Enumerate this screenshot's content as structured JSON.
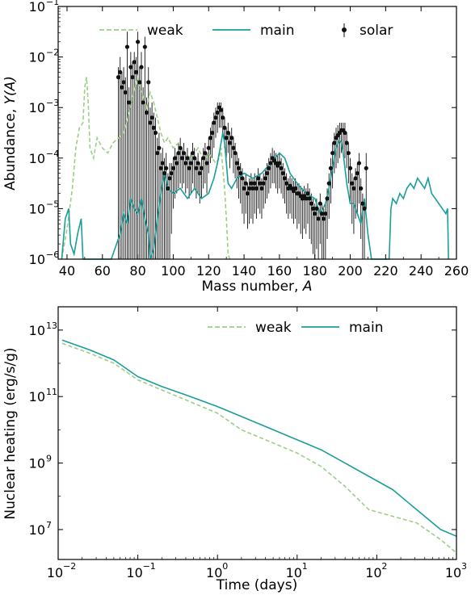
{
  "colors": {
    "weak": "#9ccf86",
    "main": "#1a9e9a",
    "solar": "#111111",
    "axis": "#000000"
  },
  "chart_data": [
    {
      "type": "line",
      "xlabel": "Mass number, ",
      "xlabel_var": "A",
      "ylabel": "Abundance, ",
      "ylabel_var": "Y(A)",
      "xlim": [
        35,
        260
      ],
      "ylim": [
        1e-06,
        0.1
      ],
      "yscale": "log",
      "grid": false,
      "legend_position": "top",
      "xticks": [
        40,
        60,
        80,
        100,
        120,
        140,
        160,
        180,
        200,
        220,
        240,
        260
      ],
      "xtick_labels": [
        "40",
        "60",
        "80",
        "100",
        "120",
        "140",
        "160",
        "180",
        "200",
        "220",
        "240",
        "260"
      ],
      "yticks": [
        -6,
        -5,
        -4,
        -3,
        -2,
        -1
      ],
      "ytick_labels": [
        "10",
        "10",
        "10",
        "10",
        "10",
        "10"
      ],
      "ytick_exps": [
        "−6",
        "−5",
        "−4",
        "−3",
        "−2",
        "−1"
      ],
      "series": [
        {
          "name": "weak",
          "style": "dashed",
          "x": [
            37,
            40,
            43,
            45,
            47,
            49,
            50,
            51,
            52,
            53,
            55,
            57,
            60,
            63,
            66,
            69,
            72,
            75,
            77,
            79,
            80,
            81,
            83,
            85,
            87,
            89,
            91,
            93,
            95,
            97,
            100,
            103,
            106,
            110,
            114,
            118,
            120,
            122,
            124,
            126,
            127,
            128,
            129,
            130,
            131,
            132
          ],
          "y": [
            -6.0,
            -5.4,
            -4.6,
            -3.8,
            -3.4,
            -3.3,
            -2.6,
            -2.4,
            -2.9,
            -3.8,
            -4.0,
            -3.6,
            -3.8,
            -3.9,
            -3.7,
            -3.6,
            -3.5,
            -3.1,
            -2.8,
            -2.5,
            -2.4,
            -2.6,
            -2.8,
            -3.0,
            -2.7,
            -2.9,
            -3.2,
            -3.5,
            -3.7,
            -3.6,
            -3.8,
            -3.7,
            -3.9,
            -4.0,
            -3.8,
            -4.1,
            -3.9,
            -4.0,
            -4.1,
            -4.0,
            -3.8,
            -4.2,
            -4.6,
            -5.2,
            -5.9,
            -6.0
          ]
        },
        {
          "name": "main",
          "style": "solid",
          "x": [
            37,
            39,
            41,
            42,
            44,
            46,
            48,
            49,
            50,
            55,
            60,
            65,
            70,
            72,
            74,
            76,
            78,
            80,
            82,
            84,
            86,
            87,
            89,
            91,
            93,
            95,
            97,
            100,
            104,
            108,
            112,
            116,
            120,
            123,
            125,
            127,
            128,
            129,
            130,
            131,
            133,
            136,
            140,
            145,
            150,
            155,
            160,
            163,
            166,
            170,
            175,
            180,
            183,
            186,
            188,
            190,
            192,
            194,
            195,
            196,
            198,
            200,
            202,
            204,
            206,
            208,
            210,
            212,
            213,
            222,
            223,
            224,
            226,
            228,
            230,
            232,
            234,
            236,
            238,
            240,
            242,
            244,
            246,
            248,
            250,
            252,
            254,
            255,
            255.5
          ],
          "y": [
            -6.0,
            -5.2,
            -5.0,
            -5.7,
            -5.9,
            -5.5,
            -5.2,
            -6.0,
            -6.0,
            -6.0,
            -6.0,
            -6.0,
            -5.5,
            -5.1,
            -5.3,
            -4.8,
            -5.0,
            -5.1,
            -4.8,
            -5.2,
            -5.5,
            -6.0,
            -5.8,
            -5.2,
            -4.7,
            -4.3,
            -4.6,
            -4.7,
            -4.6,
            -4.8,
            -4.6,
            -4.8,
            -4.7,
            -4.4,
            -4.1,
            -3.7,
            -3.5,
            -3.7,
            -4.1,
            -4.5,
            -4.6,
            -4.4,
            -4.3,
            -4.4,
            -4.3,
            -4.1,
            -3.9,
            -4.0,
            -4.3,
            -4.5,
            -4.7,
            -4.8,
            -5.1,
            -4.9,
            -4.6,
            -4.2,
            -3.8,
            -3.65,
            -3.7,
            -3.9,
            -4.5,
            -4.9,
            -4.9,
            -5.1,
            -5.3,
            -4.8,
            -5.5,
            -6.0,
            -6.0,
            -6.0,
            -5.0,
            -4.8,
            -4.9,
            -4.7,
            -4.8,
            -4.6,
            -4.5,
            -4.6,
            -4.4,
            -4.5,
            -4.6,
            -4.4,
            -4.7,
            -4.8,
            -4.9,
            -5.0,
            -5.1,
            -5.0,
            -6.0
          ]
        }
      ],
      "solar": {
        "name": "solar",
        "x": [
          69,
          70,
          71,
          72,
          73,
          74,
          75,
          76,
          77,
          78,
          79,
          80,
          81,
          82,
          83,
          84,
          85,
          86,
          87,
          88,
          89,
          90,
          91,
          92,
          93,
          94,
          95,
          96,
          97,
          98,
          99,
          100,
          101,
          102,
          103,
          104,
          105,
          106,
          107,
          108,
          109,
          110,
          111,
          112,
          113,
          114,
          115,
          116,
          117,
          118,
          119,
          120,
          121,
          122,
          123,
          124,
          125,
          126,
          127,
          128,
          129,
          130,
          131,
          132,
          133,
          134,
          135,
          136,
          137,
          138,
          139,
          140,
          141,
          142,
          143,
          144,
          145,
          146,
          147,
          148,
          149,
          150,
          151,
          152,
          153,
          154,
          155,
          156,
          157,
          158,
          159,
          160,
          161,
          162,
          163,
          164,
          165,
          166,
          167,
          168,
          169,
          170,
          171,
          172,
          173,
          174,
          175,
          176,
          177,
          178,
          179,
          180,
          181,
          182,
          183,
          184,
          185,
          186,
          187,
          188,
          189,
          190,
          191,
          192,
          193,
          194,
          195,
          196,
          197,
          198,
          199,
          200,
          201,
          202,
          203,
          204,
          205,
          206,
          207,
          208,
          209
        ],
        "y": [
          -2.4,
          -2.3,
          -2.6,
          -2.5,
          -2.7,
          -1.8,
          -2.9,
          -2.2,
          -2.4,
          -2.1,
          -2.3,
          -1.7,
          -2.5,
          -2.2,
          -2.9,
          -1.8,
          -3.1,
          -2.5,
          -3.3,
          -3.2,
          -3.4,
          -3.5,
          -3.9,
          -3.8,
          -4.2,
          -4.1,
          -4.3,
          -4.2,
          -4.6,
          -4.4,
          -4.3,
          -4.2,
          -4.0,
          -4.1,
          -3.9,
          -3.8,
          -4.0,
          -3.9,
          -4.1,
          -4.0,
          -4.2,
          -4.1,
          -3.9,
          -4.0,
          -4.2,
          -4.1,
          -4.3,
          -4.2,
          -4.0,
          -3.9,
          -4.1,
          -3.8,
          -3.6,
          -3.5,
          -3.3,
          -3.2,
          -3.1,
          -3.0,
          -3.05,
          -3.2,
          -3.4,
          -3.6,
          -3.5,
          -3.7,
          -3.6,
          -3.8,
          -3.9,
          -4.1,
          -4.2,
          -4.3,
          -4.4,
          -4.6,
          -4.5,
          -4.7,
          -4.6,
          -4.5,
          -4.6,
          -4.5,
          -4.6,
          -4.4,
          -4.5,
          -4.6,
          -4.5,
          -4.4,
          -4.3,
          -4.2,
          -4.1,
          -4.0,
          -4.05,
          -4.1,
          -4.15,
          -4.1,
          -4.2,
          -4.3,
          -4.4,
          -4.5,
          -4.6,
          -4.55,
          -4.6,
          -4.65,
          -4.6,
          -4.7,
          -4.7,
          -4.75,
          -4.8,
          -4.75,
          -4.8,
          -4.7,
          -4.8,
          -4.9,
          -5.0,
          -5.1,
          -5.0,
          -5.2,
          -4.9,
          -5.1,
          -5.2,
          -5.1,
          -4.8,
          -4.5,
          -4.2,
          -3.9,
          -3.7,
          -3.6,
          -3.55,
          -3.5,
          -3.45,
          -3.45,
          -3.5,
          -3.7,
          -3.9,
          -4.2,
          -4.5,
          -4.6,
          -4.4,
          -4.3,
          -4.1,
          -4.6,
          -4.9,
          -5.0,
          -4.2
        ],
        "err_low": [
          -6.0,
          -6.0,
          -6.0,
          -6.0,
          -6.0,
          -6.0,
          -6.0,
          -6.0,
          -6.0,
          -6.0,
          -6.0,
          -6.0,
          -6.0,
          -6.0,
          -6.0,
          -6.0,
          -6.0,
          -6.0,
          -6.0,
          -6.0,
          -6.0,
          -6.0,
          -6.0,
          -6.0,
          -6.0,
          -6.0,
          -6.0,
          -6.0,
          -6.0,
          -6.0,
          -5.5,
          -5.0,
          -4.8,
          -4.7,
          -4.6,
          -4.5,
          -4.6,
          -4.5,
          -4.7,
          -4.6,
          -4.8,
          -4.7,
          -4.5,
          -4.6,
          -4.8,
          -4.7,
          -4.9,
          -4.8,
          -4.6,
          -4.5,
          -4.7,
          -4.3,
          -4.1,
          -4.0,
          -3.8,
          -3.6,
          -3.5,
          -3.4,
          -3.4,
          -3.5,
          -3.8,
          -4.0,
          -3.9,
          -4.2,
          -4.0,
          -4.3,
          -4.4,
          -4.6,
          -4.8,
          -4.9,
          -5.1,
          -5.3,
          -5.1,
          -5.4,
          -5.3,
          -5.2,
          -5.3,
          -5.1,
          -5.2,
          -5.0,
          -5.1,
          -5.2,
          -5.0,
          -4.9,
          -4.8,
          -4.7,
          -4.6,
          -4.5,
          -4.5,
          -4.6,
          -4.7,
          -4.6,
          -4.7,
          -4.8,
          -4.9,
          -5.1,
          -5.2,
          -5.1,
          -5.2,
          -5.3,
          -5.2,
          -5.4,
          -5.3,
          -5.5,
          -5.6,
          -5.4,
          -5.5,
          -5.3,
          -5.6,
          -5.7,
          -5.9,
          -6.0,
          -5.8,
          -6.0,
          -5.7,
          -6.0,
          -6.0,
          -6.0,
          -5.6,
          -5.2,
          -4.9,
          -4.6,
          -4.3,
          -4.2,
          -4.1,
          -4.0,
          -3.9,
          -3.9,
          -4.0,
          -4.2,
          -4.5,
          -4.9,
          -5.3,
          -5.5,
          -5.2,
          -5.1,
          -4.9,
          -5.6,
          -6.0,
          -6.0,
          -5.0
        ],
        "err_high": [
          -2.2,
          -2.0,
          -2.3,
          -2.2,
          -2.4,
          -1.5,
          -2.6,
          -1.9,
          -2.1,
          -1.9,
          -2.0,
          -1.5,
          -2.2,
          -1.9,
          -2.6,
          -1.6,
          -2.8,
          -2.2,
          -3.0,
          -2.9,
          -3.1,
          -3.2,
          -3.6,
          -3.5,
          -3.9,
          -3.8,
          -4.0,
          -3.9,
          -4.3,
          -4.1,
          -4.1,
          -4.0,
          -3.8,
          -3.9,
          -3.7,
          -3.6,
          -3.8,
          -3.7,
          -3.9,
          -3.8,
          -4.0,
          -3.9,
          -3.7,
          -3.8,
          -4.0,
          -3.9,
          -4.1,
          -4.0,
          -3.8,
          -3.7,
          -3.9,
          -3.6,
          -3.4,
          -3.3,
          -3.1,
          -3.0,
          -2.9,
          -2.9,
          -2.9,
          -3.0,
          -3.2,
          -3.4,
          -3.3,
          -3.5,
          -3.4,
          -3.6,
          -3.7,
          -3.9,
          -4.0,
          -4.1,
          -4.2,
          -4.4,
          -4.3,
          -4.5,
          -4.4,
          -4.3,
          -4.4,
          -4.3,
          -4.4,
          -4.2,
          -4.3,
          -4.4,
          -4.3,
          -4.2,
          -4.1,
          -4.0,
          -3.9,
          -3.8,
          -3.85,
          -3.9,
          -3.95,
          -3.9,
          -4.0,
          -4.1,
          -4.2,
          -4.3,
          -4.4,
          -4.35,
          -4.4,
          -4.45,
          -4.4,
          -4.5,
          -4.5,
          -4.55,
          -4.6,
          -4.55,
          -4.6,
          -4.5,
          -4.6,
          -4.7,
          -4.8,
          -4.9,
          -4.8,
          -5.0,
          -4.7,
          -4.9,
          -5.0,
          -4.9,
          -4.6,
          -4.3,
          -4.0,
          -3.7,
          -3.5,
          -3.4,
          -3.35,
          -3.3,
          -3.3,
          -3.3,
          -3.3,
          -3.5,
          -3.7,
          -4.0,
          -4.3,
          -4.4,
          -4.2,
          -4.1,
          -3.9,
          -4.4,
          -4.7,
          -4.8,
          -3.9
        ]
      }
    },
    {
      "type": "line",
      "xlabel": "Time (days)",
      "ylabel": "Nuclear heating (erg/s/g)",
      "xlim": [
        -2,
        3
      ],
      "ylim": [
        6.1,
        13.7
      ],
      "xscale": "log",
      "yscale": "log",
      "grid": false,
      "legend_position": "top",
      "xticks": [
        -2,
        -1,
        0,
        1,
        2,
        3
      ],
      "xtick_labels": [
        "10",
        "10",
        "10",
        "10",
        "10",
        "10"
      ],
      "xtick_exps": [
        "−2",
        "−1",
        "0",
        "1",
        "2",
        "3"
      ],
      "yticks": [
        7,
        9,
        11,
        13
      ],
      "ytick_labels": [
        "10",
        "10",
        "10",
        "10"
      ],
      "ytick_exps": [
        "7",
        "9",
        "11",
        "13"
      ],
      "series": [
        {
          "name": "weak",
          "style": "dashed",
          "x": [
            -1.95,
            -1.6,
            -1.3,
            -1.0,
            -0.7,
            -0.4,
            0.0,
            0.3,
            0.6,
            1.0,
            1.3,
            1.6,
            1.9,
            2.2,
            2.5,
            2.8,
            3.0
          ],
          "y": [
            12.6,
            12.3,
            12.0,
            11.5,
            11.2,
            10.9,
            10.5,
            10.0,
            9.7,
            9.3,
            8.9,
            8.3,
            7.6,
            7.4,
            7.2,
            6.7,
            6.3
          ]
        },
        {
          "name": "main",
          "style": "solid",
          "x": [
            -1.95,
            -1.6,
            -1.3,
            -1.0,
            -0.7,
            -0.4,
            0.0,
            0.3,
            0.6,
            1.0,
            1.3,
            1.6,
            1.9,
            2.2,
            2.5,
            2.8,
            3.0
          ],
          "y": [
            12.7,
            12.4,
            12.1,
            11.6,
            11.3,
            11.05,
            10.7,
            10.4,
            10.1,
            9.7,
            9.4,
            9.0,
            8.6,
            8.2,
            7.6,
            7.0,
            6.8
          ]
        }
      ]
    }
  ]
}
